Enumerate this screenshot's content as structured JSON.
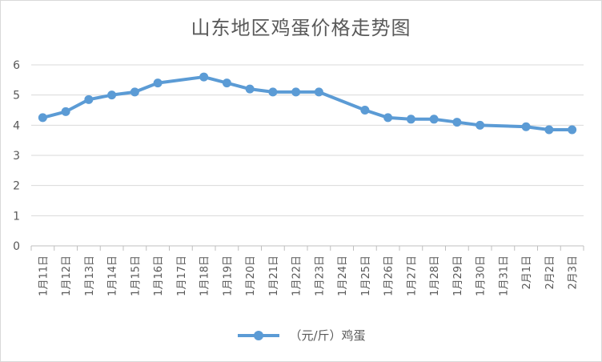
{
  "chart_data": {
    "type": "line",
    "title": "山东地区鸡蛋价格走势图",
    "xlabel": "",
    "ylabel": "",
    "ylim": [
      0,
      6
    ],
    "yticks": [
      0,
      1,
      2,
      3,
      4,
      5,
      6
    ],
    "grid": true,
    "legend_position": "bottom",
    "categories": [
      "1月11日",
      "1月12日",
      "1月13日",
      "1月14日",
      "1月15日",
      "1月16日",
      "1月17日",
      "1月18日",
      "1月19日",
      "1月20日",
      "1月21日",
      "1月22日",
      "1月23日",
      "1月24日",
      "1月25日",
      "1月26日",
      "1月27日",
      "1月28日",
      "1月29日",
      "1月30日",
      "1月31日",
      "2月1日",
      "2月2日",
      "2月3日"
    ],
    "series": [
      {
        "name": "（元/斤）鸡蛋",
        "color": "#5b9bd5",
        "values": [
          4.25,
          4.45,
          4.85,
          5.0,
          5.1,
          5.4,
          null,
          5.6,
          5.4,
          5.2,
          5.1,
          5.1,
          5.1,
          null,
          4.5,
          4.25,
          4.2,
          4.2,
          4.1,
          4.0,
          null,
          3.95,
          3.85,
          3.85
        ]
      }
    ]
  }
}
